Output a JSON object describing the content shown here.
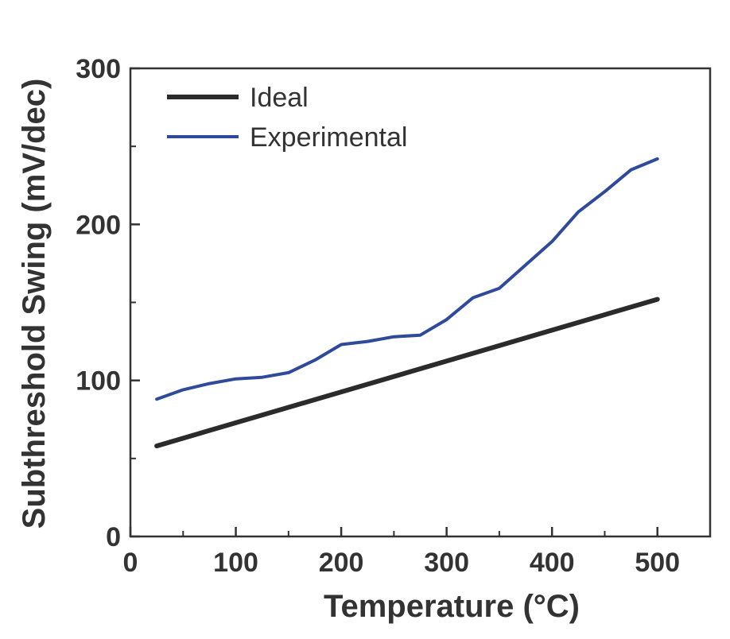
{
  "chart_data": {
    "type": "line",
    "title": "",
    "xlabel": "Temperature (°C)",
    "ylabel": "Subthreshold Swing (mV/dec)",
    "xlim": [
      0,
      550
    ],
    "ylim": [
      0,
      300
    ],
    "xticks": [
      0,
      100,
      200,
      300,
      400,
      500
    ],
    "yticks": [
      0,
      100,
      200,
      300
    ],
    "x_minor_ticks": [
      50,
      150,
      250,
      350,
      450
    ],
    "y_minor_ticks": [
      50,
      150,
      250
    ],
    "grid": false,
    "legend_position": "top-left",
    "series": [
      {
        "name": "Ideal",
        "color": "#2b2b2b",
        "x": [
          25,
          500
        ],
        "y": [
          58,
          152
        ]
      },
      {
        "name": "Experimental",
        "color": "#2f4a9a",
        "x": [
          25,
          50,
          75,
          100,
          125,
          150,
          175,
          200,
          225,
          250,
          275,
          300,
          325,
          350,
          375,
          400,
          425,
          450,
          475,
          500
        ],
        "y": [
          88,
          94,
          98,
          101,
          102,
          105,
          113,
          123,
          125,
          128,
          129,
          139,
          153,
          159,
          174,
          189,
          208,
          221,
          235,
          242
        ]
      }
    ]
  }
}
